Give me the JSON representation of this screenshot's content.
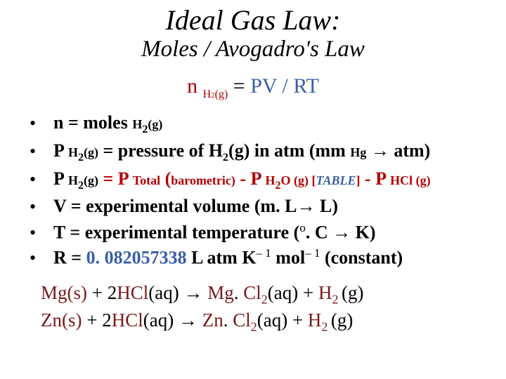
{
  "title": "Ideal Gas Law:",
  "subtitle": "Moles / Avogadro's Law",
  "equation": {
    "n": "n ",
    "sub": "H",
    "sub2": "2",
    "subg": "(g)",
    "eq": " = ",
    "rhs": "PV / RT"
  },
  "bullets": [
    {
      "parts": [
        {
          "t": "n = moles ",
          "cls": ""
        },
        {
          "t": "H",
          "cls": "small-bold"
        },
        {
          "t": "2",
          "cls": "sub1"
        },
        {
          "t": "(g)",
          "cls": "small-bold"
        }
      ]
    },
    {
      "parts": [
        {
          "t": "P ",
          "cls": ""
        },
        {
          "t": "H",
          "cls": "small-bold"
        },
        {
          "t": "2",
          "cls": "sub1"
        },
        {
          "t": "(g)",
          "cls": "small-bold"
        },
        {
          "t": " = pressure of H",
          "cls": ""
        },
        {
          "t": "2",
          "cls": "sub1"
        },
        {
          "t": "(g) in atm (mm ",
          "cls": ""
        },
        {
          "t": "Hg",
          "cls": "small-bold"
        },
        {
          "t": " ",
          "cls": ""
        },
        {
          "t": "→",
          "cls": "arrow"
        },
        {
          "t": " atm)",
          "cls": ""
        }
      ]
    },
    {
      "parts": [
        {
          "t": "P ",
          "cls": ""
        },
        {
          "t": "H",
          "cls": "small-bold"
        },
        {
          "t": "2",
          "cls": "sub1"
        },
        {
          "t": "(g)",
          "cls": "small-bold"
        },
        {
          "t": " ",
          "cls": ""
        },
        {
          "t": "= P ",
          "cls": "red"
        },
        {
          "t": "Total",
          "cls": "small-bold red"
        },
        {
          "t": " (",
          "cls": "red"
        },
        {
          "t": "barometric)",
          "cls": "small-bold red"
        },
        {
          "t": "  -  P ",
          "cls": "red"
        },
        {
          "t": "H",
          "cls": "small-bold red"
        },
        {
          "t": "2",
          "cls": "sub1 red"
        },
        {
          "t": "O (g) ",
          "cls": "small-bold red"
        },
        {
          "t": "[",
          "cls": "small-bold red"
        },
        {
          "t": "TABLE",
          "cls": "small-blue-table"
        },
        {
          "t": "]",
          "cls": "small-bold red"
        },
        {
          "t": "  -  P ",
          "cls": "red"
        },
        {
          "t": "HCl (g)",
          "cls": "small-bold red"
        }
      ]
    },
    {
      "parts": [
        {
          "t": "V = experimental volume (m",
          "cls": ""
        },
        {
          "t": ". ",
          "cls": ""
        },
        {
          "t": "L",
          "cls": ""
        },
        {
          "t": "→",
          "cls": "arrow"
        },
        {
          "t": " L)",
          "cls": ""
        }
      ]
    },
    {
      "parts": [
        {
          "t": "T = experimental temperature (",
          "cls": ""
        },
        {
          "t": "o",
          "cls": "sup-nb"
        },
        {
          "t": ". ",
          "cls": ""
        },
        {
          "t": "C ",
          "cls": ""
        },
        {
          "t": "→",
          "cls": "arrow"
        },
        {
          "t": " K)",
          "cls": ""
        }
      ]
    },
    {
      "parts": [
        {
          "t": "R = ",
          "cls": ""
        },
        {
          "t": "0. 082057338",
          "cls": "blue"
        },
        {
          "t": " L atm K",
          "cls": ""
        },
        {
          "t": "– 1",
          "cls": "sup-nb"
        },
        {
          "t": " mol",
          "cls": ""
        },
        {
          "t": "– 1",
          "cls": "sup-nb"
        },
        {
          "t": " (constant)",
          "cls": ""
        }
      ]
    }
  ],
  "reactions": [
    {
      "reactant": "Mg(s)",
      "hcl": " + 2",
      "hcl_color_pre": "HCl",
      "hcl_aq": "(aq) ",
      "arrow": "→",
      "prod1": " Mg",
      "prod1_dot": ". ",
      "prod1b": "Cl",
      "prod1sub": "2",
      "prod1aq": "(aq) ",
      "plus": " + ",
      "h2": "H",
      "h2sub": "2 ",
      "h2g": "(g)"
    },
    {
      "reactant": "Zn(s)",
      "hcl": " + 2",
      "hcl_color_pre": "HCl",
      "hcl_aq": "(aq) ",
      "arrow": "→",
      "prod1": " Zn",
      "prod1_dot": ". ",
      "prod1b": "Cl",
      "prod1sub": "2",
      "prod1aq": "(aq) ",
      "plus": " + ",
      "h2": "H",
      "h2sub": "2 ",
      "h2g": "(g)"
    }
  ]
}
